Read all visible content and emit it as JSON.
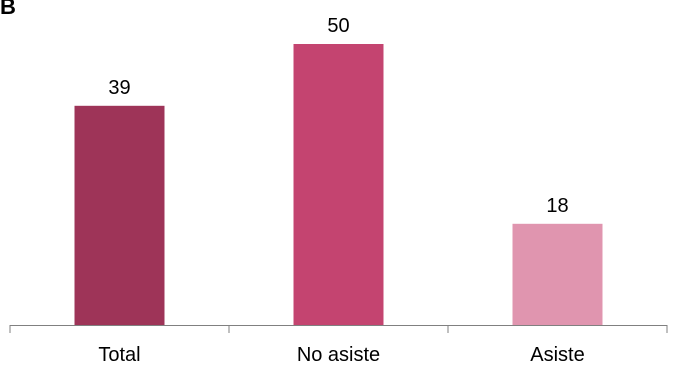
{
  "corner_mark": "B",
  "chart_data": {
    "type": "bar",
    "categories": [
      "Total",
      "No asiste",
      "Asiste"
    ],
    "values": [
      39,
      50,
      18
    ],
    "colors": [
      "#9e3458",
      "#c44470",
      "#e095af"
    ],
    "title": "",
    "xlabel": "",
    "ylabel": "",
    "ylim": [
      0,
      60
    ],
    "grid": false,
    "data_labels": true
  }
}
